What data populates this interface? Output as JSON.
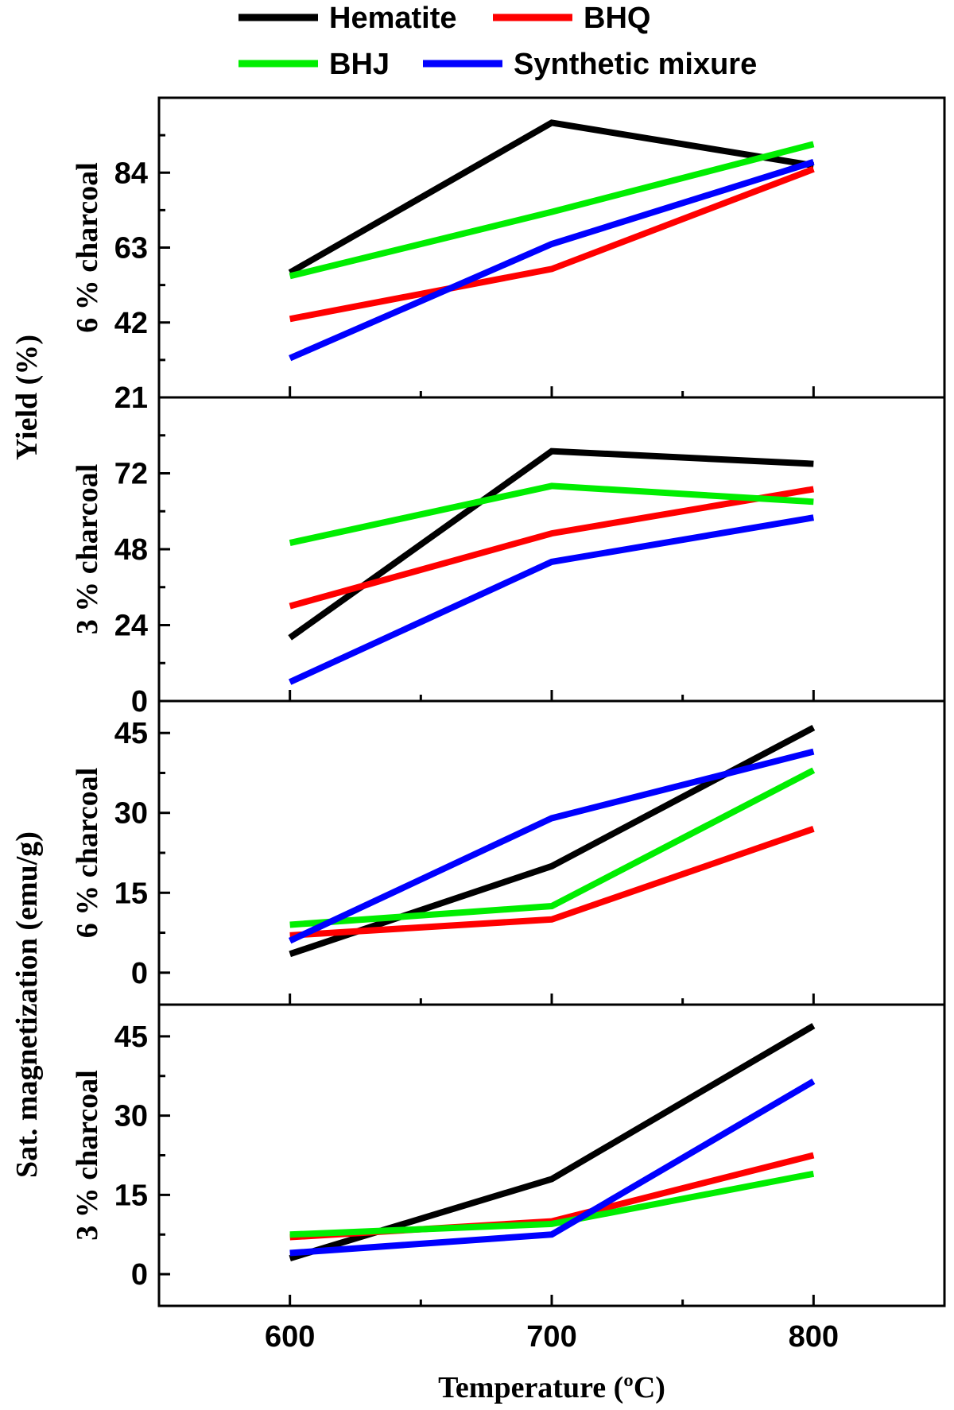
{
  "legend": [
    {
      "name": "Hematite",
      "color": "#000000"
    },
    {
      "name": "BHQ",
      "color": "#ff0000"
    },
    {
      "name": "BHJ",
      "color": "#00ee00"
    },
    {
      "name": "Synthetic mixure",
      "color": "#0000ff"
    }
  ],
  "axis_titles": {
    "x": "Temperature (ºC)",
    "y_top": "Yield (%)",
    "y_bottom": "Sat. magnetization (emu/g)"
  },
  "chart_data": [
    {
      "type": "line",
      "panel_label": "6 % charcoal",
      "x": [
        600,
        700,
        800
      ],
      "xlim": [
        550,
        850
      ],
      "ylim": [
        21,
        105
      ],
      "yticks": [
        21,
        42,
        63,
        84
      ],
      "series": [
        {
          "name": "Hematite",
          "color": "#000000",
          "values": [
            56,
            98,
            86
          ]
        },
        {
          "name": "BHQ",
          "color": "#ff0000",
          "values": [
            43,
            57,
            85
          ]
        },
        {
          "name": "BHJ",
          "color": "#00ee00",
          "values": [
            55,
            73,
            92
          ]
        },
        {
          "name": "Synthetic mixure",
          "color": "#0000ff",
          "values": [
            32,
            64,
            87
          ]
        }
      ]
    },
    {
      "type": "line",
      "panel_label": "3 % charcoal",
      "x": [
        600,
        700,
        800
      ],
      "xlim": [
        550,
        850
      ],
      "ylim": [
        0,
        96
      ],
      "yticks": [
        0,
        24,
        48,
        72
      ],
      "series": [
        {
          "name": "Hematite",
          "color": "#000000",
          "values": [
            20,
            79,
            75
          ]
        },
        {
          "name": "BHQ",
          "color": "#ff0000",
          "values": [
            30,
            53,
            67
          ]
        },
        {
          "name": "BHJ",
          "color": "#00ee00",
          "values": [
            50,
            68,
            63
          ]
        },
        {
          "name": "Synthetic mixure",
          "color": "#0000ff",
          "values": [
            6,
            44,
            58
          ]
        }
      ]
    },
    {
      "type": "line",
      "panel_label": "6 % charcoal",
      "x": [
        600,
        700,
        800
      ],
      "xlim": [
        550,
        850
      ],
      "ylim": [
        -6,
        51
      ],
      "yticks": [
        0,
        15,
        30,
        45
      ],
      "series": [
        {
          "name": "Hematite",
          "color": "#000000",
          "values": [
            3.5,
            20,
            46
          ]
        },
        {
          "name": "BHQ",
          "color": "#ff0000",
          "values": [
            7,
            10,
            27
          ]
        },
        {
          "name": "BHJ",
          "color": "#00ee00",
          "values": [
            9,
            12.5,
            38
          ]
        },
        {
          "name": "Synthetic mixure",
          "color": "#0000ff",
          "values": [
            6,
            29,
            41.5
          ]
        }
      ]
    },
    {
      "type": "line",
      "panel_label": "3 % charcoal",
      "x": [
        600,
        700,
        800
      ],
      "xlim": [
        550,
        850
      ],
      "ylim": [
        -6,
        51
      ],
      "yticks": [
        0,
        15,
        30,
        45
      ],
      "series": [
        {
          "name": "Hematite",
          "color": "#000000",
          "values": [
            3,
            18,
            47
          ]
        },
        {
          "name": "BHQ",
          "color": "#ff0000",
          "values": [
            7,
            10,
            22.5
          ]
        },
        {
          "name": "BHJ",
          "color": "#00ee00",
          "values": [
            7.5,
            9.5,
            19
          ]
        },
        {
          "name": "Synthetic mixure",
          "color": "#0000ff",
          "values": [
            4,
            7.5,
            36.5
          ]
        }
      ]
    }
  ],
  "x_tick_labels": [
    "600",
    "700",
    "800"
  ]
}
